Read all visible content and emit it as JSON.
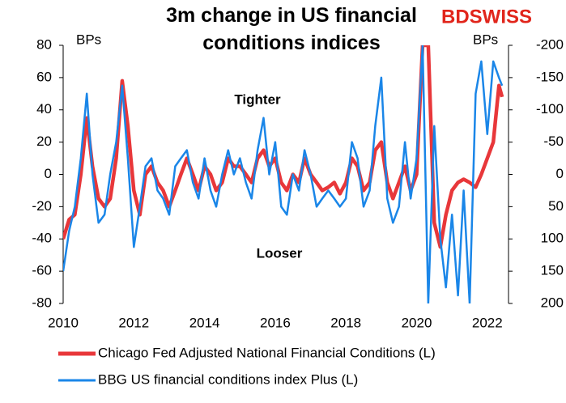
{
  "chart_data": {
    "type": "line",
    "title": "3m change in US financial conditions indices",
    "logo": "BDSWISS",
    "ylabel": "BPs",
    "y2label": "BPs",
    "annotations": [
      "Tighter",
      "Looser"
    ],
    "x": [
      2010,
      2010.17,
      2010.33,
      2010.5,
      2010.67,
      2010.83,
      2011,
      2011.17,
      2011.33,
      2011.5,
      2011.67,
      2011.83,
      2012,
      2012.17,
      2012.33,
      2012.5,
      2012.67,
      2012.83,
      2013,
      2013.17,
      2013.33,
      2013.5,
      2013.67,
      2013.83,
      2014,
      2014.17,
      2014.33,
      2014.5,
      2014.67,
      2014.83,
      2015,
      2015.17,
      2015.33,
      2015.5,
      2015.67,
      2015.83,
      2016,
      2016.17,
      2016.33,
      2016.5,
      2016.67,
      2016.83,
      2017,
      2017.17,
      2017.33,
      2017.5,
      2017.67,
      2017.83,
      2018,
      2018.17,
      2018.33,
      2018.5,
      2018.67,
      2018.83,
      2019,
      2019.17,
      2019.33,
      2019.5,
      2019.67,
      2019.83,
      2020,
      2020.17,
      2020.33,
      2020.5,
      2020.67,
      2020.83,
      2021,
      2021.17,
      2021.33,
      2021.5,
      2021.67,
      2021.83,
      2022,
      2022.17,
      2022.33,
      2022.42
    ],
    "series": [
      {
        "name": "Chicago Fed Adjusted National Financial Conditions (L)",
        "color": "#e8373a",
        "values": [
          -40,
          -28,
          -25,
          0,
          35,
          5,
          -15,
          -20,
          -15,
          10,
          58,
          30,
          -10,
          -25,
          0,
          5,
          -5,
          -10,
          -20,
          -10,
          0,
          10,
          0,
          -10,
          5,
          0,
          -10,
          -5,
          10,
          5,
          5,
          0,
          -5,
          10,
          15,
          5,
          10,
          -5,
          -10,
          0,
          -5,
          10,
          0,
          -5,
          -10,
          -8,
          -5,
          -12,
          -5,
          10,
          5,
          -10,
          -5,
          15,
          20,
          -5,
          -15,
          -5,
          5,
          -10,
          0,
          80,
          80,
          -30,
          -45,
          -25,
          -10,
          -5,
          -3,
          -5,
          -8,
          0,
          10,
          20,
          55,
          48
        ]
      },
      {
        "name": "BBG US financial conditions index Plus (L)",
        "color": "#1a86e8",
        "values": [
          -60,
          -35,
          -20,
          10,
          50,
          0,
          -30,
          -25,
          0,
          20,
          55,
          10,
          -45,
          -20,
          5,
          10,
          -10,
          -15,
          -25,
          5,
          10,
          15,
          -5,
          -15,
          10,
          -10,
          -20,
          0,
          15,
          0,
          10,
          -5,
          -15,
          15,
          35,
          0,
          20,
          -20,
          -25,
          0,
          -10,
          15,
          0,
          -20,
          -15,
          -10,
          -15,
          -20,
          -15,
          20,
          10,
          -20,
          -10,
          30,
          60,
          -15,
          -30,
          -20,
          20,
          -15,
          10,
          80,
          -80,
          30,
          -40,
          -70,
          -25,
          -75,
          -10,
          -80,
          50,
          70,
          25,
          70,
          60,
          55
        ]
      }
    ],
    "xlim": [
      2010,
      2022.6
    ],
    "xticks": [
      2010,
      2012,
      2014,
      2016,
      2018,
      2020,
      2022
    ],
    "ylim": [
      -80,
      80
    ],
    "yticks": [
      -80,
      -60,
      -40,
      -20,
      0,
      20,
      40,
      60,
      80
    ],
    "y2lim": [
      200,
      -200
    ],
    "y2ticks": [
      -200,
      -150,
      -100,
      -50,
      0,
      50,
      100,
      150,
      200
    ],
    "grid": false
  }
}
